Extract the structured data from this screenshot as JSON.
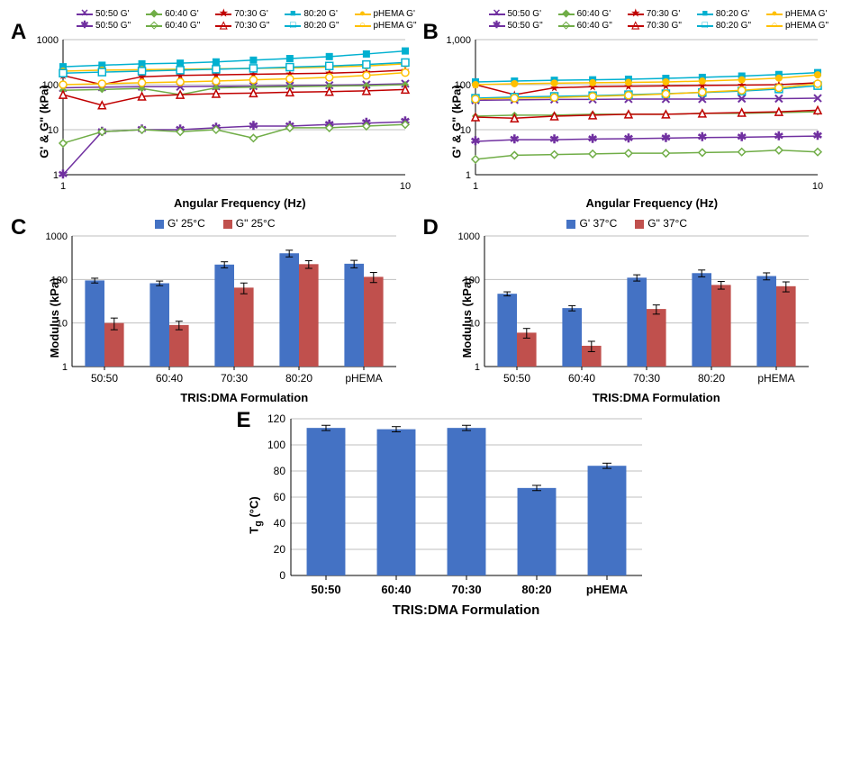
{
  "panelA": {
    "label": "A",
    "ylabel": "G' & G\" (kPa)",
    "xlabel": "Angular Frequency (Hz)",
    "xlim": [
      1,
      10
    ],
    "ylim": [
      1,
      1000
    ],
    "ylim_label": "1000",
    "legend": [
      {
        "label": "50:50 G'",
        "color": "#7030a0",
        "sym": "✕",
        "fill": true
      },
      {
        "label": "60:40 G'",
        "color": "#70ad47",
        "sym": "◆",
        "fill": true
      },
      {
        "label": "70:30 G'",
        "color": "#c00000",
        "sym": "★",
        "fill": true
      },
      {
        "label": "80:20 G'",
        "color": "#00b0d0",
        "sym": "■",
        "fill": true
      },
      {
        "label": "pHEMA G'",
        "color": "#ffc000",
        "sym": "●",
        "fill": true
      },
      {
        "label": "50:50 G\"",
        "color": "#7030a0",
        "sym": "✱",
        "fill": false
      },
      {
        "label": "60:40 G\"",
        "color": "#70ad47",
        "sym": "◇",
        "fill": false
      },
      {
        "label": "70:30 G\"",
        "color": "#c00000",
        "sym": "△",
        "fill": false
      },
      {
        "label": "80:20 G\"",
        "color": "#00b0d0",
        "sym": "□",
        "fill": false
      },
      {
        "label": "pHEMA G\"",
        "color": "#ffc000",
        "sym": "○",
        "fill": false
      }
    ],
    "x": [
      1,
      1.3,
      1.7,
      2.2,
      2.8,
      3.6,
      4.6,
      6.0,
      7.7,
      10
    ],
    "series": {
      "s5050Gp": {
        "color": "#7030a0",
        "sym": "✕",
        "y": [
          85,
          88,
          90,
          90,
          92,
          93,
          95,
          97,
          100,
          105
        ]
      },
      "s6040Gp": {
        "color": "#70ad47",
        "sym": "◆",
        "y": [
          75,
          78,
          82,
          60,
          85,
          88,
          90,
          93,
          95,
          100
        ]
      },
      "s7030Gp": {
        "color": "#c00000",
        "sym": "★",
        "y": [
          160,
          100,
          150,
          160,
          165,
          170,
          175,
          180,
          190,
          210
        ]
      },
      "s8020Gp": {
        "color": "#00b0d0",
        "sym": "■",
        "y": [
          250,
          270,
          290,
          300,
          320,
          350,
          380,
          420,
          480,
          560
        ]
      },
      "pHEMAGp": {
        "color": "#ffc000",
        "sym": "●",
        "y": [
          200,
          210,
          215,
          220,
          225,
          230,
          235,
          245,
          260,
          290
        ]
      },
      "s5050Gpp": {
        "color": "#7030a0",
        "sym": "✱",
        "y": [
          1,
          9,
          10,
          10,
          11,
          12,
          12,
          13,
          14,
          15
        ]
      },
      "s6040Gpp": {
        "color": "#70ad47",
        "sym": "◇",
        "y": [
          5,
          9,
          10,
          9,
          10,
          6.5,
          11,
          11,
          12,
          13
        ]
      },
      "s7030Gpp": {
        "color": "#c00000",
        "sym": "△",
        "y": [
          60,
          35,
          55,
          60,
          63,
          65,
          68,
          70,
          73,
          78
        ]
      },
      "s8020Gpp": {
        "color": "#00b0d0",
        "sym": "□",
        "y": [
          180,
          190,
          200,
          210,
          220,
          230,
          245,
          260,
          280,
          310
        ]
      },
      "pHEMAGpp": {
        "color": "#ffc000",
        "sym": "○",
        "y": [
          100,
          105,
          110,
          115,
          120,
          128,
          135,
          145,
          160,
          185
        ]
      }
    }
  },
  "panelB": {
    "label": "B",
    "ylabel": "G' & G\" (kPa)",
    "xlabel": "Angular Frequency (Hz)",
    "xlim": [
      1,
      10
    ],
    "ylim": [
      1,
      1000
    ],
    "ylim_label": "1,000",
    "x": [
      1,
      1.3,
      1.7,
      2.2,
      2.8,
      3.6,
      4.6,
      6.0,
      7.7,
      10
    ],
    "series": {
      "s5050Gp": {
        "color": "#7030a0",
        "sym": "✕",
        "y": [
          45,
          46,
          47,
          47,
          48,
          48,
          48,
          49,
          49,
          50
        ]
      },
      "s6040Gp": {
        "color": "#70ad47",
        "sym": "◆",
        "y": [
          20,
          21,
          21,
          22,
          22,
          22,
          23,
          23,
          24,
          25
        ]
      },
      "s7030Gp": {
        "color": "#c00000",
        "sym": "★",
        "y": [
          100,
          60,
          85,
          90,
          92,
          94,
          96,
          98,
          100,
          110
        ]
      },
      "s8020Gp": {
        "color": "#00b0d0",
        "sym": "■",
        "y": [
          115,
          120,
          125,
          128,
          132,
          138,
          145,
          155,
          168,
          185
        ]
      },
      "pHEMAGp": {
        "color": "#ffc000",
        "sym": "●",
        "y": [
          100,
          105,
          108,
          110,
          112,
          115,
          120,
          128,
          140,
          165
        ]
      },
      "s5050Gpp": {
        "color": "#7030a0",
        "sym": "✱",
        "y": [
          5.5,
          6,
          6,
          6.2,
          6.3,
          6.5,
          6.7,
          6.8,
          7,
          7.2
        ]
      },
      "s6040Gpp": {
        "color": "#70ad47",
        "sym": "◇",
        "y": [
          2.2,
          2.7,
          2.8,
          2.9,
          3,
          3,
          3.1,
          3.2,
          3.5,
          3.2
        ]
      },
      "s7030Gpp": {
        "color": "#c00000",
        "sym": "△",
        "y": [
          19,
          18,
          20,
          21,
          22,
          22,
          23,
          24,
          25,
          27
        ]
      },
      "s8020Gpp": {
        "color": "#00b0d0",
        "sym": "□",
        "y": [
          50,
          53,
          55,
          57,
          60,
          63,
          67,
          72,
          80,
          95
        ]
      },
      "pHEMAGpp": {
        "color": "#ffc000",
        "sym": "○",
        "y": [
          48,
          50,
          52,
          55,
          58,
          62,
          68,
          75,
          85,
          105
        ]
      }
    }
  },
  "panelC": {
    "label": "C",
    "ylabel": "Modulus (kPa)",
    "xlabel": "TRIS:DMA Formulation",
    "ylim": [
      1,
      1000
    ],
    "categories": [
      "50:50",
      "60:40",
      "70:30",
      "80:20",
      "pHEMA"
    ],
    "legend": [
      {
        "label": "G' 25°C",
        "color": "#4472c4"
      },
      {
        "label": "G\" 25°C",
        "color": "#c0504d"
      }
    ],
    "g1": {
      "color": "#4472c4",
      "vals": [
        95,
        82,
        220,
        400,
        230
      ],
      "err": [
        12,
        10,
        35,
        70,
        45
      ]
    },
    "g2": {
      "color": "#c0504d",
      "vals": [
        10,
        9,
        65,
        225,
        115
      ],
      "err": [
        3,
        2,
        18,
        45,
        30
      ]
    }
  },
  "panelD": {
    "label": "D",
    "ylabel": "Modulus (kPa)",
    "xlabel": "TRIS:DMA Formulation",
    "ylim": [
      1,
      1000
    ],
    "categories": [
      "50:50",
      "60:40",
      "70:30",
      "80:20",
      "pHEMA"
    ],
    "legend": [
      {
        "label": "G' 37°C",
        "color": "#4472c4"
      },
      {
        "label": "G\" 37°C",
        "color": "#c0504d"
      }
    ],
    "g1": {
      "color": "#4472c4",
      "vals": [
        47,
        22,
        110,
        140,
        120
      ],
      "err": [
        5,
        3,
        18,
        25,
        22
      ]
    },
    "g2": {
      "color": "#c0504d",
      "vals": [
        6,
        3,
        21,
        75,
        70
      ],
      "err": [
        1.5,
        0.8,
        5,
        15,
        18
      ]
    }
  },
  "panelE": {
    "label": "E",
    "ylabel": "Tg (°C)",
    "xlabel": "TRIS:DMA Formulation",
    "ylim": [
      0,
      120
    ],
    "yticks": [
      0,
      20,
      40,
      60,
      80,
      100,
      120
    ],
    "categories": [
      "50:50",
      "60:40",
      "70:30",
      "80:20",
      "pHEMA"
    ],
    "bar_color": "#4472c4",
    "vals": [
      113,
      112,
      113,
      67,
      84
    ],
    "err": [
      2,
      2,
      2,
      2,
      2
    ]
  },
  "style": {
    "grid_color": "#bfbfbf",
    "axis_color": "#000000",
    "tick_font": 10,
    "background": "#ffffff"
  }
}
